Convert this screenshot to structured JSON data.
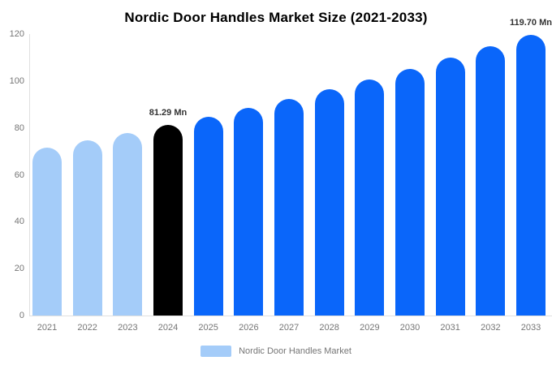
{
  "title": "Nordic Door Handles Market Size (2021-2033)",
  "legend": {
    "label": "Nordic Door Handles Market",
    "swatch_color": "#a4ccf9"
  },
  "colors": {
    "light_blue": "#a4ccf9",
    "primary_blue": "#0a66fa",
    "highlight_black": "#000000",
    "axis_line": "#e0e0e0",
    "tick_text": "#757575",
    "annotation_text": "#333333",
    "title_text": "#000000",
    "background": "#ffffff"
  },
  "chart_data": {
    "type": "bar",
    "title": "Nordic Door Handles Market Size (2021-2033)",
    "xlabel": "",
    "ylabel": "",
    "ylim": [
      0,
      120
    ],
    "yticks": [
      "0",
      "20",
      "40",
      "60",
      "80",
      "100",
      "120"
    ],
    "ytick_values": [
      0,
      20,
      40,
      60,
      80,
      100,
      120
    ],
    "grid": false,
    "legend_position": "bottom-center",
    "categories": [
      "2021",
      "2022",
      "2023",
      "2024",
      "2025",
      "2026",
      "2027",
      "2028",
      "2029",
      "2030",
      "2031",
      "2032",
      "2033"
    ],
    "values": [
      71.46,
      74.6,
      77.87,
      81.29,
      84.86,
      88.59,
      92.48,
      96.55,
      100.79,
      105.22,
      109.84,
      114.67,
      119.7
    ],
    "bar_colors": [
      "#a4ccf9",
      "#a4ccf9",
      "#a4ccf9",
      "#000000",
      "#0a66fa",
      "#0a66fa",
      "#0a66fa",
      "#0a66fa",
      "#0a66fa",
      "#0a66fa",
      "#0a66fa",
      "#0a66fa",
      "#0a66fa"
    ],
    "annotations": [
      {
        "category": "2024",
        "text": "81.29 Mn"
      },
      {
        "category": "2033",
        "text": "119.70 Mn"
      }
    ]
  }
}
